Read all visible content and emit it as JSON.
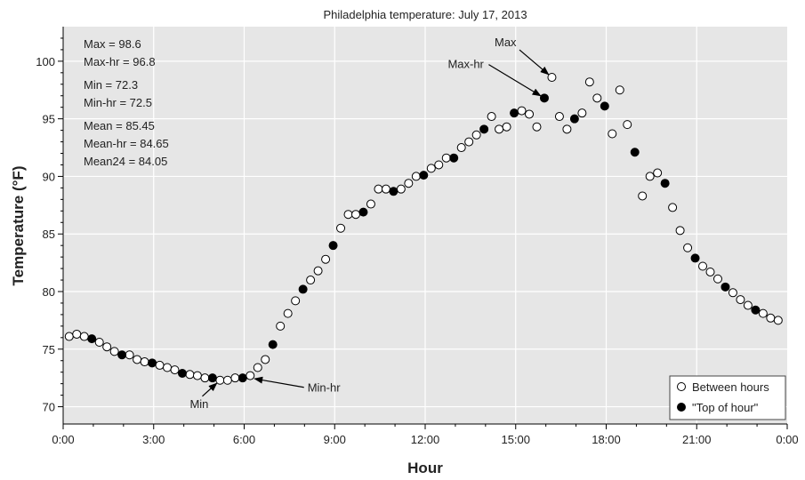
{
  "chart_data": {
    "type": "scatter",
    "title": "Philadelphia temperature:  July 17, 2013",
    "xlabel": "Hour",
    "ylabel": "Temperature (°F)",
    "xlim": [
      0,
      24
    ],
    "ylim": [
      68.5,
      103
    ],
    "x_ticks": [
      0,
      3,
      6,
      9,
      12,
      15,
      18,
      21,
      24
    ],
    "x_tick_labels": [
      "0:00",
      "3:00",
      "6:00",
      "9:00",
      "12:00",
      "15:00",
      "18:00",
      "21:00",
      "0:00"
    ],
    "y_ticks": [
      70,
      75,
      80,
      85,
      90,
      95,
      100
    ],
    "y_tick_labels": [
      "70",
      "75",
      "80",
      "85",
      "90",
      "95",
      "100"
    ],
    "grid": true,
    "legend_position": "bottom-right",
    "stats": [
      "Max = 98.6",
      "Max-hr = 96.8",
      "Min = 72.3",
      "Min-hr = 72.5",
      "Mean = 85.45",
      "Mean-hr = 84.65",
      "Mean24 = 84.05"
    ],
    "series": [
      {
        "name": "Between hours",
        "marker": "open-circle",
        "color": "#ffffff",
        "points": [
          [
            0.2,
            76.1
          ],
          [
            0.45,
            76.3
          ],
          [
            0.7,
            76.1
          ],
          [
            1.2,
            75.6
          ],
          [
            1.45,
            75.2
          ],
          [
            1.7,
            74.8
          ],
          [
            2.2,
            74.5
          ],
          [
            2.45,
            74.1
          ],
          [
            2.7,
            73.9
          ],
          [
            3.2,
            73.6
          ],
          [
            3.45,
            73.4
          ],
          [
            3.7,
            73.2
          ],
          [
            4.2,
            72.8
          ],
          [
            4.45,
            72.7
          ],
          [
            4.7,
            72.5
          ],
          [
            5.2,
            72.3
          ],
          [
            5.45,
            72.3
          ],
          [
            5.7,
            72.5
          ],
          [
            6.2,
            72.7
          ],
          [
            6.45,
            73.4
          ],
          [
            6.7,
            74.1
          ],
          [
            7.2,
            77.0
          ],
          [
            7.45,
            78.1
          ],
          [
            7.7,
            79.2
          ],
          [
            8.2,
            81.0
          ],
          [
            8.45,
            81.8
          ],
          [
            8.7,
            82.8
          ],
          [
            9.2,
            85.5
          ],
          [
            9.45,
            86.7
          ],
          [
            9.7,
            86.7
          ],
          [
            10.2,
            87.6
          ],
          [
            10.45,
            88.9
          ],
          [
            10.7,
            88.9
          ],
          [
            11.2,
            88.9
          ],
          [
            11.45,
            89.4
          ],
          [
            11.7,
            90.0
          ],
          [
            12.2,
            90.7
          ],
          [
            12.45,
            91.0
          ],
          [
            12.7,
            91.6
          ],
          [
            13.2,
            92.5
          ],
          [
            13.45,
            93.0
          ],
          [
            13.7,
            93.6
          ],
          [
            14.2,
            95.2
          ],
          [
            14.45,
            94.1
          ],
          [
            14.7,
            94.3
          ],
          [
            15.2,
            95.7
          ],
          [
            15.45,
            95.4
          ],
          [
            15.7,
            94.3
          ],
          [
            16.2,
            98.6
          ],
          [
            16.45,
            95.2
          ],
          [
            16.7,
            94.1
          ],
          [
            17.2,
            95.5
          ],
          [
            17.45,
            98.2
          ],
          [
            17.7,
            96.8
          ],
          [
            18.2,
            93.7
          ],
          [
            18.45,
            97.5
          ],
          [
            18.7,
            94.5
          ],
          [
            19.2,
            88.3
          ],
          [
            19.45,
            90.0
          ],
          [
            19.7,
            90.3
          ],
          [
            20.2,
            87.3
          ],
          [
            20.45,
            85.3
          ],
          [
            20.7,
            83.8
          ],
          [
            21.2,
            82.2
          ],
          [
            21.45,
            81.7
          ],
          [
            21.7,
            81.1
          ],
          [
            22.2,
            79.9
          ],
          [
            22.45,
            79.3
          ],
          [
            22.7,
            78.8
          ],
          [
            23.2,
            78.1
          ],
          [
            23.45,
            77.7
          ],
          [
            23.7,
            77.5
          ]
        ]
      },
      {
        "name": "\"Top of hour\"",
        "marker": "filled-circle",
        "color": "#000000",
        "points": [
          [
            0.95,
            75.9
          ],
          [
            1.95,
            74.5
          ],
          [
            2.95,
            73.8
          ],
          [
            3.95,
            72.9
          ],
          [
            4.95,
            72.5
          ],
          [
            5.95,
            72.5
          ],
          [
            6.95,
            75.4
          ],
          [
            7.95,
            80.2
          ],
          [
            8.95,
            84.0
          ],
          [
            9.95,
            86.9
          ],
          [
            10.95,
            88.7
          ],
          [
            11.95,
            90.1
          ],
          [
            12.95,
            91.6
          ],
          [
            13.95,
            94.1
          ],
          [
            14.95,
            95.5
          ],
          [
            15.95,
            96.8
          ],
          [
            16.95,
            95.0
          ],
          [
            17.95,
            96.1
          ],
          [
            18.95,
            92.1
          ],
          [
            19.95,
            89.4
          ],
          [
            20.95,
            82.9
          ],
          [
            21.95,
            80.4
          ],
          [
            22.95,
            78.4
          ]
        ]
      }
    ],
    "annotations": [
      {
        "label": "Max",
        "at": [
          16.2,
          98.6
        ],
        "text_at": [
          14.3,
          101.3
        ]
      },
      {
        "label": "Max-hr",
        "at": [
          15.95,
          96.8
        ],
        "text_at": [
          12.75,
          99.4
        ]
      },
      {
        "label": "Min",
        "at": [
          5.2,
          72.3
        ],
        "text_at": [
          4.2,
          69.9
        ]
      },
      {
        "label": "Min-hr",
        "at": [
          6.2,
          72.5
        ],
        "text_at": [
          8.1,
          71.3
        ]
      }
    ]
  }
}
